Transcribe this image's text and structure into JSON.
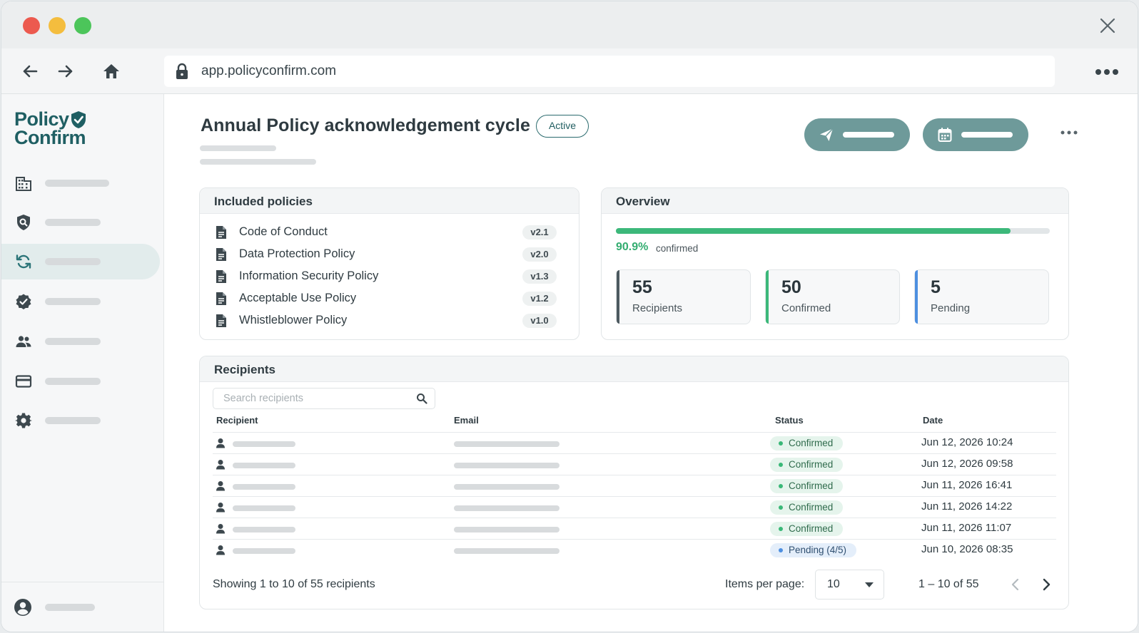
{
  "browser": {
    "url": "app.policyconfirm.com"
  },
  "brand": {
    "line1": "Policy",
    "line2": "Confirm",
    "color": "#1f5f63"
  },
  "sidebar": {
    "items": [
      {
        "icon": "building-icon"
      },
      {
        "icon": "shield-search-icon"
      },
      {
        "icon": "cycle-icon",
        "active": true
      },
      {
        "icon": "badge-check-icon"
      },
      {
        "icon": "users-icon"
      },
      {
        "icon": "card-icon"
      },
      {
        "icon": "gear-icon"
      }
    ],
    "footer_icon": "account-icon"
  },
  "header": {
    "title": "Annual Policy acknowledgement cycle",
    "status": "Active",
    "actions": [
      {
        "icon": "send-icon"
      },
      {
        "icon": "calendar-icon"
      }
    ]
  },
  "policies": {
    "title": "Included policies",
    "items": [
      {
        "name": "Code of Conduct",
        "version": "v2.1"
      },
      {
        "name": "Data Protection Policy",
        "version": "v2.0"
      },
      {
        "name": "Information Security Policy",
        "version": "v1.3"
      },
      {
        "name": "Acceptable Use Policy",
        "version": "v1.2"
      },
      {
        "name": "Whistleblower Policy",
        "version": "v1.0"
      }
    ]
  },
  "overview": {
    "title": "Overview",
    "progress": 0.909,
    "percent_text": "90.9%",
    "percent_label": "confirmed",
    "stats": [
      {
        "value": "55",
        "label": "Recipients",
        "color": "#4d5a60"
      },
      {
        "value": "50",
        "label": "Confirmed",
        "color": "#3cb87a"
      },
      {
        "value": "5",
        "label": "Pending",
        "color": "#4d8fe0"
      }
    ]
  },
  "recipients": {
    "title": "Recipients",
    "search_placeholder": "Search recipients",
    "columns": {
      "recipient": "Recipient",
      "email": "Email",
      "status": "Status",
      "date": "Date"
    },
    "rows": [
      {
        "status": "Confirmed",
        "type": "ok",
        "date": "Jun 12, 2026 10:24"
      },
      {
        "status": "Confirmed",
        "type": "ok",
        "date": "Jun 12, 2026 09:58"
      },
      {
        "status": "Confirmed",
        "type": "ok",
        "date": "Jun 11, 2026 16:41"
      },
      {
        "status": "Confirmed",
        "type": "ok",
        "date": "Jun 11, 2026 14:22"
      },
      {
        "status": "Confirmed",
        "type": "ok",
        "date": "Jun 11, 2026 11:07"
      },
      {
        "status": "Pending (4/5)",
        "type": "pend",
        "date": "Jun 10, 2026 08:35"
      }
    ],
    "showing_text": "Showing 1 to 10 of 55 recipients",
    "items_per_page_label": "Items per page:",
    "items_per_page": "10",
    "range_text": "1 – 10 of 55"
  },
  "colors": {
    "accent": "#6e9a9a",
    "success": "#3cb87a",
    "pending": "#4d8fe0"
  }
}
